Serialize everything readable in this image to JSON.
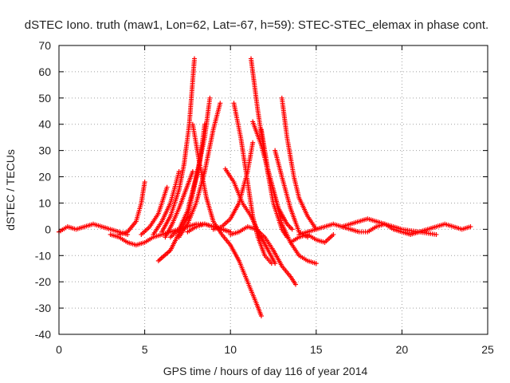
{
  "chart_data": {
    "type": "scatter",
    "title": "dSTEC Iono. truth (maw1, Lon=62, Lat=-67, h=59): STEC-STEC_elemax in phase cont.",
    "xlabel": "GPS time / hours of day 116 of year 2014",
    "ylabel": "dSTEC  / TECUs",
    "xlim": [
      0,
      25
    ],
    "ylim": [
      -40,
      70
    ],
    "xticks": [
      0,
      5,
      10,
      15,
      20,
      25
    ],
    "yticks": [
      -40,
      -30,
      -20,
      -10,
      0,
      10,
      20,
      30,
      40,
      50,
      60,
      70
    ],
    "grid": true,
    "marker": "plus",
    "color": "#ff0000",
    "series": [
      {
        "x": [
          0.0,
          0.5,
          1.0,
          1.5,
          2.0,
          2.5,
          3.0,
          3.5,
          4.0
        ],
        "y": [
          -1,
          1,
          0,
          1,
          2,
          1,
          0,
          -1,
          -2
        ]
      },
      {
        "x": [
          3.0,
          3.5,
          4.0,
          4.5,
          5.0,
          5.5,
          6.0,
          6.5,
          7.0,
          7.5,
          8.0,
          8.5,
          9.0,
          9.5,
          10.0
        ],
        "y": [
          -2,
          -3,
          -5,
          -6,
          -5,
          -3,
          -2,
          -1,
          0,
          1,
          2,
          2,
          1,
          0,
          -1
        ]
      },
      {
        "x": [
          3.5,
          4.0,
          4.5,
          4.8,
          5.0
        ],
        "y": [
          -2,
          -1,
          3,
          10,
          18
        ]
      },
      {
        "x": [
          4.8,
          5.3,
          5.8,
          6.0,
          6.3
        ],
        "y": [
          -2,
          1,
          6,
          10,
          16
        ]
      },
      {
        "x": [
          5.5,
          6.0,
          6.5,
          6.8,
          7.0
        ],
        "y": [
          -2,
          3,
          10,
          17,
          22
        ]
      },
      {
        "x": [
          6.0,
          6.5,
          7.0,
          7.3,
          7.6,
          7.9
        ],
        "y": [
          -1,
          5,
          15,
          25,
          40,
          65
        ]
      },
      {
        "x": [
          6.2,
          6.6,
          7.0,
          7.4,
          7.8
        ],
        "y": [
          -3,
          2,
          8,
          15,
          22
        ]
      },
      {
        "x": [
          6.5,
          7.0,
          7.5,
          8.0,
          8.5,
          8.8
        ],
        "y": [
          -3,
          0,
          7,
          20,
          35,
          50
        ]
      },
      {
        "x": [
          5.8,
          6.5,
          7.5,
          8.2,
          8.5
        ],
        "y": [
          -12,
          -8,
          5,
          25,
          40
        ]
      },
      {
        "x": [
          7.0,
          7.5,
          8.0,
          8.5,
          9.0,
          9.4
        ],
        "y": [
          -3,
          2,
          10,
          22,
          38,
          48
        ]
      },
      {
        "x": [
          7.8,
          8.2,
          8.6,
          9.0,
          9.5,
          10.0,
          10.5,
          11.0,
          11.5,
          11.8
        ],
        "y": [
          40,
          25,
          12,
          3,
          -2,
          -6,
          -12,
          -20,
          -28,
          -33
        ]
      },
      {
        "x": [
          7.5,
          8.0,
          8.5,
          9.0,
          9.5,
          10.0
        ],
        "y": [
          -1,
          1,
          2,
          1,
          0,
          -1
        ]
      },
      {
        "x": [
          9.0,
          9.5,
          10.0,
          10.5,
          11.0,
          11.3
        ],
        "y": [
          0,
          1,
          4,
          10,
          22,
          33
        ]
      },
      {
        "x": [
          10.2,
          10.6,
          11.0,
          11.3,
          11.6,
          12.0,
          12.4
        ],
        "y": [
          48,
          35,
          18,
          5,
          -3,
          -10,
          -13
        ]
      },
      {
        "x": [
          9.7,
          10.2,
          10.7,
          11.2,
          11.7,
          12.2,
          12.6
        ],
        "y": [
          23,
          18,
          10,
          5,
          -2,
          -8,
          -13
        ]
      },
      {
        "x": [
          10.0,
          10.5,
          11.0,
          11.5,
          12.0,
          12.5,
          13.0,
          13.5,
          13.8
        ],
        "y": [
          -2,
          -1,
          1,
          0,
          -3,
          -8,
          -14,
          -18,
          -21
        ]
      },
      {
        "x": [
          11.2,
          11.6,
          12.0,
          12.5,
          13.0,
          13.3
        ],
        "y": [
          65,
          45,
          28,
          10,
          0,
          -3
        ]
      },
      {
        "x": [
          11.3,
          11.8,
          12.3,
          12.8,
          13.3,
          13.6
        ],
        "y": [
          41,
          32,
          20,
          8,
          2,
          0
        ]
      },
      {
        "x": [
          11.8,
          12.2,
          12.6,
          13.0,
          13.5,
          14.0,
          14.5,
          15.0
        ],
        "y": [
          38,
          22,
          12,
          2,
          -5,
          -10,
          -12,
          -13
        ]
      },
      {
        "x": [
          12.6,
          13.0,
          13.5,
          14.0,
          14.5
        ],
        "y": [
          30,
          20,
          8,
          -1,
          -3
        ]
      },
      {
        "x": [
          13.0,
          13.3,
          13.7,
          14.0,
          14.5,
          15.0
        ],
        "y": [
          50,
          35,
          20,
          12,
          5,
          0
        ]
      },
      {
        "x": [
          13.5,
          14.0,
          14.5,
          15.0,
          15.5,
          16.0
        ],
        "y": [
          -5,
          -3,
          -2,
          -4,
          -5,
          -2
        ]
      },
      {
        "x": [
          14.0,
          14.5,
          15.0,
          15.5,
          16.0,
          16.5,
          17.0,
          17.5,
          18.0,
          18.5,
          19.0,
          19.5,
          20.0,
          20.5,
          21.0,
          21.5,
          22.0,
          22.5,
          23.0,
          23.5,
          24.0
        ],
        "y": [
          -2,
          -1,
          0,
          1,
          2,
          1,
          0,
          -1,
          -1,
          1,
          2,
          0,
          -1,
          -2,
          -1,
          0,
          1,
          2,
          1,
          0,
          1
        ]
      },
      {
        "x": [
          16.5,
          17.0,
          17.5,
          18.0,
          18.5,
          19.0,
          19.5,
          20.0,
          21.0,
          22.0
        ],
        "y": [
          1,
          2,
          3,
          4,
          3,
          2,
          1,
          0,
          -1,
          -2
        ]
      }
    ]
  }
}
